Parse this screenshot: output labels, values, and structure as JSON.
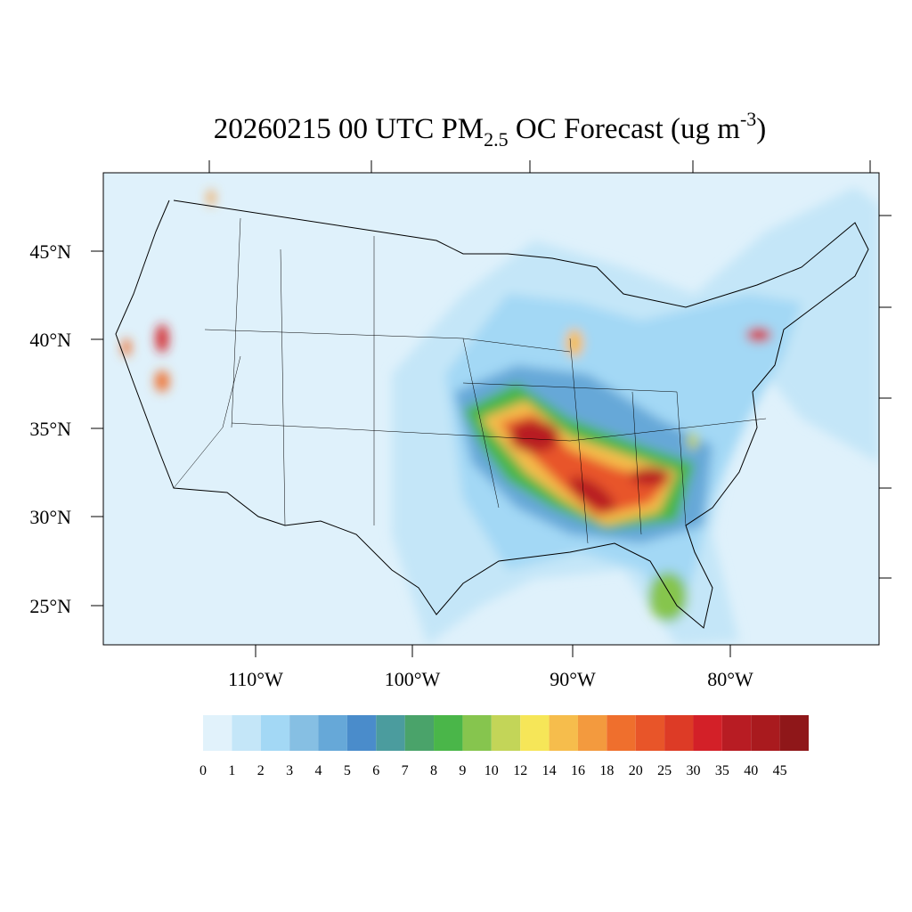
{
  "map": {
    "title": {
      "main": "20260215 00 UTC PM",
      "sub": "2.5",
      "mid": " OC Forecast (ug m",
      "sup": "-3",
      "end": ")"
    },
    "lat_labels": [
      "45°N",
      "40°N",
      "35°N",
      "30°N",
      "25°N"
    ],
    "lon_labels": [
      "110°W",
      "100°W",
      "90°W",
      "80°W"
    ],
    "colorbar": {
      "levels": [
        0,
        1,
        2,
        3,
        4,
        5,
        6,
        7,
        8,
        9,
        10,
        12,
        14,
        16,
        18,
        20,
        25,
        30,
        35,
        40,
        45
      ],
      "colors": [
        "#e1f2fb",
        "#c4e6f8",
        "#a3d8f5",
        "#86bfe3",
        "#66a8d8",
        "#4a8ccb",
        "#4b9c9e",
        "#4aa36a",
        "#4ab649",
        "#86c54e",
        "#c3d558",
        "#f6e658",
        "#f6bd4c",
        "#f39a3e",
        "#ef6f2d",
        "#e85529",
        "#dd3b26",
        "#d32028",
        "#b81c23",
        "#a91a1e",
        "#8f1719"
      ]
    }
  }
}
